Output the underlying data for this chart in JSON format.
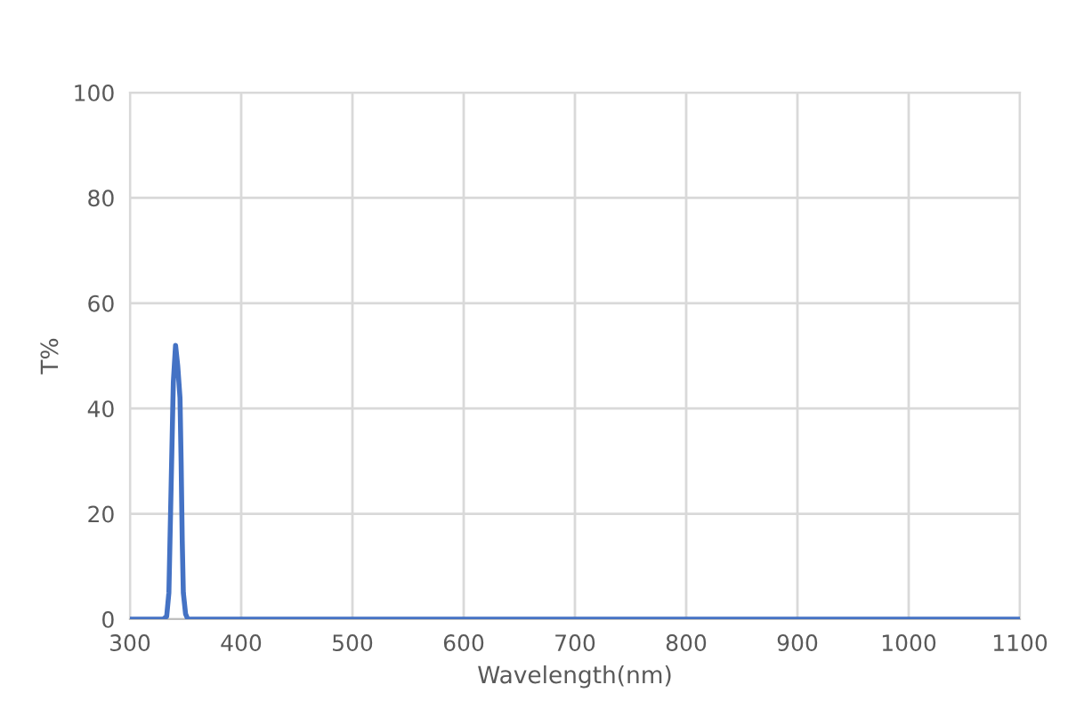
{
  "chart_data": {
    "type": "line",
    "xlabel": "Wavelength(nm)",
    "ylabel": "T%",
    "series": [
      {
        "color": "#4472c4",
        "x": [
          300,
          330,
          333,
          335,
          337,
          339,
          341,
          343,
          345,
          346,
          347,
          348,
          350,
          352,
          1100
        ],
        "values": [
          0,
          0,
          0.5,
          5,
          25,
          45,
          52,
          48,
          42,
          30,
          15,
          5,
          1,
          0,
          0
        ]
      }
    ],
    "xlim": [
      300,
      1100
    ],
    "xticks": [
      300,
      400,
      500,
      600,
      700,
      800,
      900,
      1000,
      1100
    ],
    "ylim": [
      0,
      100
    ],
    "yticks": [
      0,
      20,
      40,
      60,
      80,
      100
    ],
    "grid": true,
    "marker": "none",
    "line_style": "solid",
    "legend": false
  }
}
